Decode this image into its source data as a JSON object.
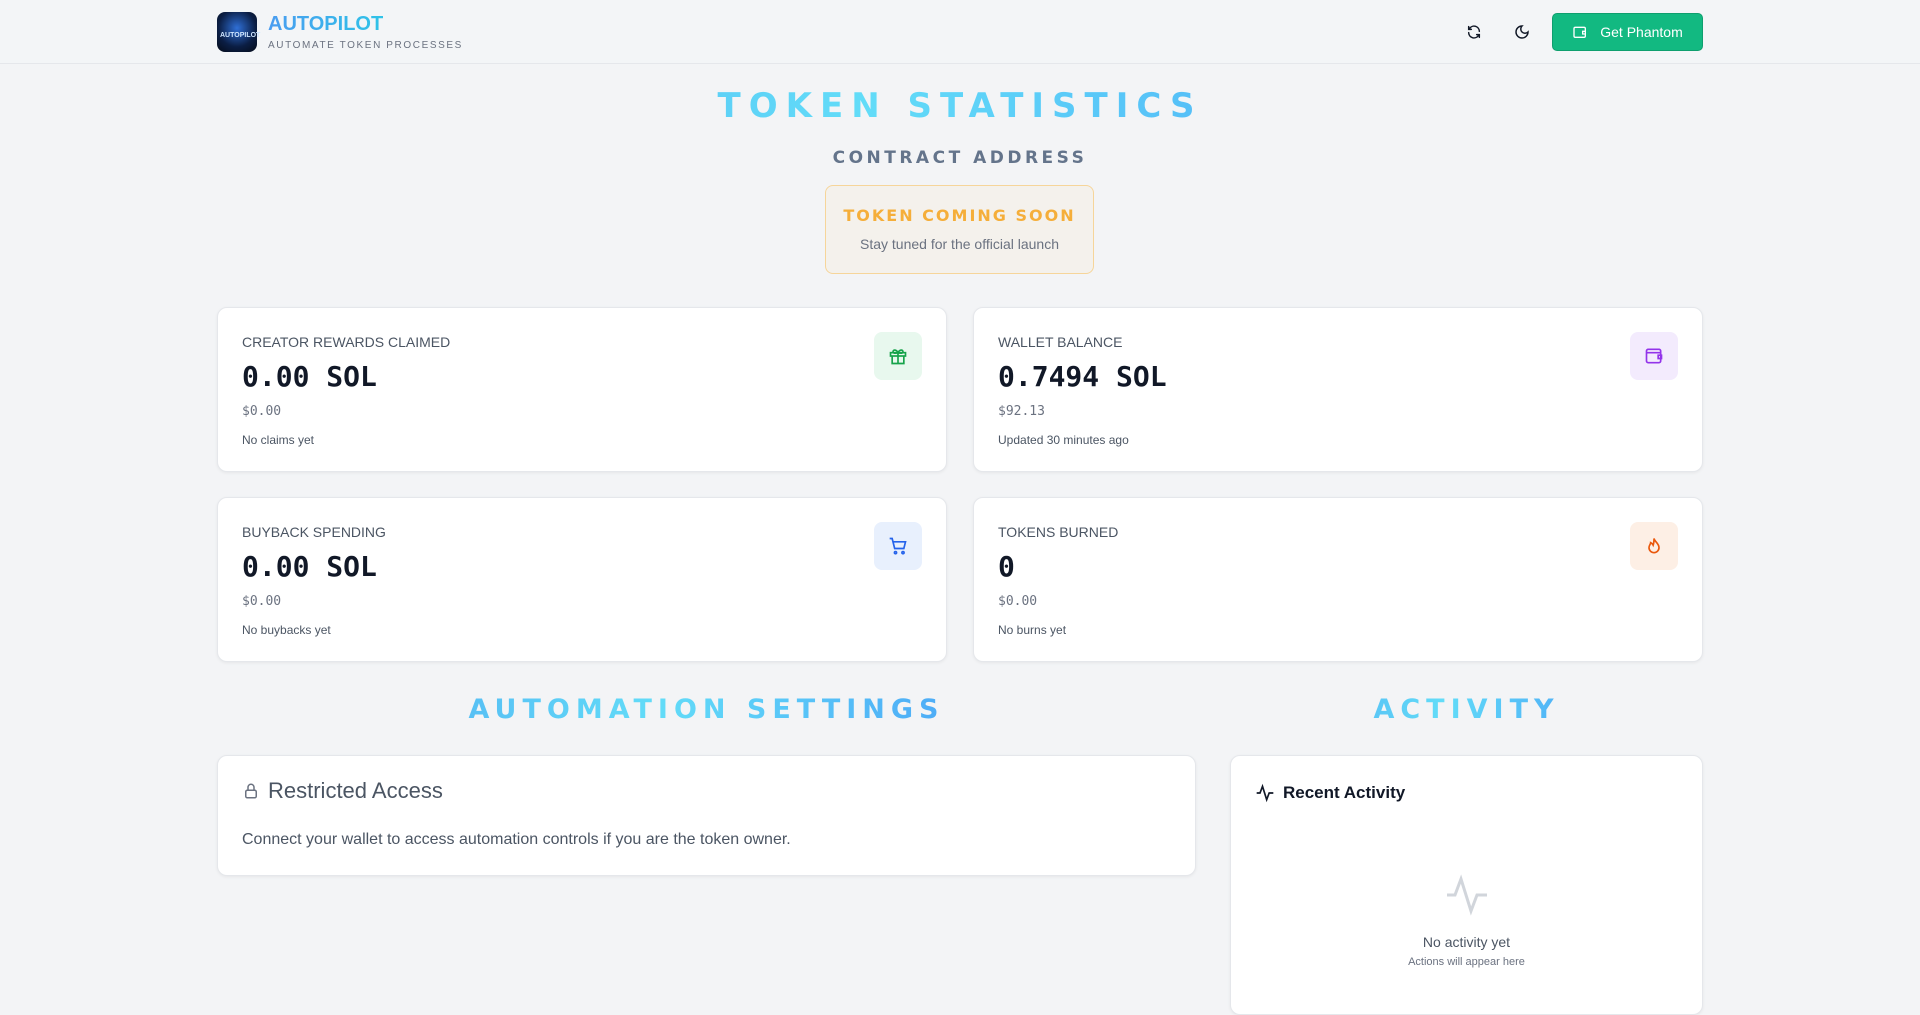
{
  "header": {
    "brand": "AUTOPILOT",
    "tagline": "AUTOMATE TOKEN PROCESSES",
    "logo_text": "AUTOPILOT",
    "phantom_label": "Get Phantom",
    "accent": "#12b981"
  },
  "stats_section": {
    "title": "TOKEN STATISTICS",
    "contract_label": "CONTRACT ADDRESS",
    "coming_soon": "TOKEN COMING SOON",
    "coming_soon_sub": "Stay tuned for the official launch"
  },
  "stats": [
    {
      "label": "CREATOR REWARDS CLAIMED",
      "value": "0.00 SOL",
      "usd": "$0.00",
      "note": "No claims yet",
      "icon": "gift-icon"
    },
    {
      "label": "WALLET BALANCE",
      "value": "0.7494 SOL",
      "usd": "$92.13",
      "note": "Updated 30 minutes ago",
      "icon": "wallet-icon"
    },
    {
      "label": "BUYBACK SPENDING",
      "value": "0.00 SOL",
      "usd": "$0.00",
      "note": "No buybacks yet",
      "icon": "cart-icon"
    },
    {
      "label": "TOKENS BURNED",
      "value": "0",
      "usd": "$0.00",
      "note": "No burns yet",
      "icon": "flame-icon"
    }
  ],
  "automation": {
    "title": "AUTOMATION SETTINGS",
    "card_title": "Restricted Access",
    "card_text": "Connect your wallet to access automation controls if you are the token owner."
  },
  "activity": {
    "title": "ACTIVITY",
    "card_title": "Recent Activity",
    "empty_title": "No activity yet",
    "empty_sub": "Actions will appear here"
  }
}
